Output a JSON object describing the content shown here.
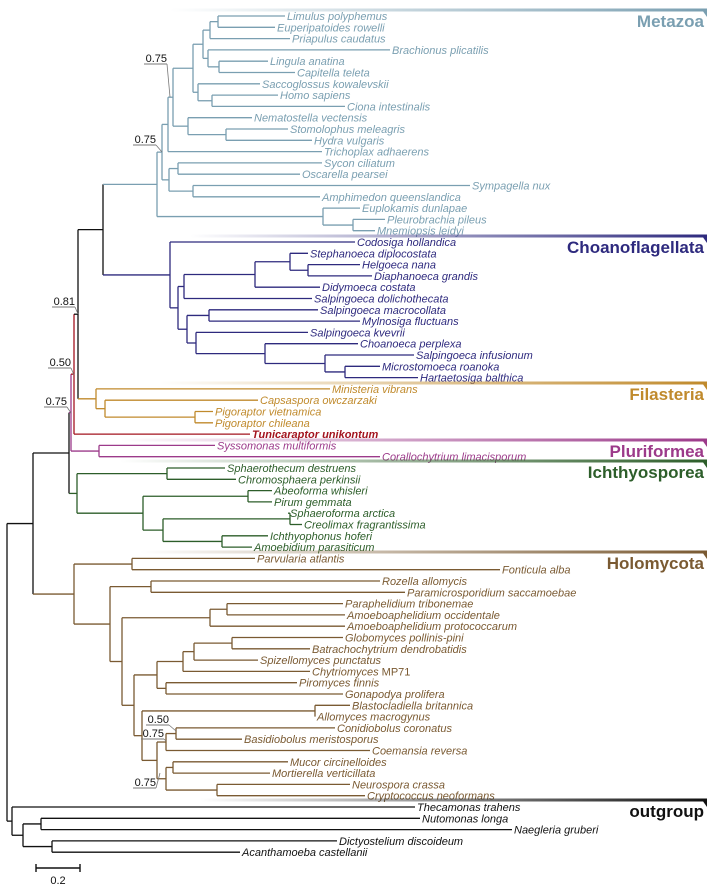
{
  "clades": [
    {
      "name": "Metazoa",
      "color": "#7a9fb1",
      "taxa": [
        {
          "name": "Limulus polyphemus"
        },
        {
          "name": "Euperipatoides rowelli"
        },
        {
          "name": "Priapulus caudatus"
        },
        {
          "name": "Brachionus plicatilis"
        },
        {
          "name": "Lingula anatina"
        },
        {
          "name": "Capitella teleta"
        },
        {
          "name": "Saccoglossus kowalevskii"
        },
        {
          "name": "Homo sapiens"
        },
        {
          "name": "Ciona intestinalis"
        },
        {
          "name": "Nematostella vectensis"
        },
        {
          "name": "Stomolophus meleagris"
        },
        {
          "name": "Hydra vulgaris"
        },
        {
          "name": "Trichoplax adhaerens"
        },
        {
          "name": "Sycon ciliatum"
        },
        {
          "name": "Oscarella pearsei"
        },
        {
          "name": "Sympagella nux"
        },
        {
          "name": "Amphimedon queenslandica"
        },
        {
          "name": "Euplokamis dunlapae"
        },
        {
          "name": "Pleurobrachia pileus"
        },
        {
          "name": "Mnemiopsis leidyi"
        }
      ]
    },
    {
      "name": "Choanoflagellata",
      "color": "#2e2a7e",
      "taxa": [
        {
          "name": "Codosiga hollandica"
        },
        {
          "name": "Stephanoeca diplocostata"
        },
        {
          "name": "Helgoeca nana"
        },
        {
          "name": "Diaphanoeca grandis"
        },
        {
          "name": "Didymoeca costata"
        },
        {
          "name": "Salpingoeca dolichothecata"
        },
        {
          "name": "Salpingoeca macrocollata"
        },
        {
          "name": "Mylnosiga fluctuans"
        },
        {
          "name": "Salpingoeca kvevrii"
        },
        {
          "name": "Choanoeca perplexa"
        },
        {
          "name": "Salpingoeca infusionum"
        },
        {
          "name": "Microstomoeca roanoka"
        },
        {
          "name": "Hartaetosiga balthica"
        }
      ]
    },
    {
      "name": "Filasteria",
      "color": "#c08a2c",
      "taxa": [
        {
          "name": "Ministeria vibrans"
        },
        {
          "name": "Capsaspora owczarzaki"
        },
        {
          "name": "Pigoraptor vietnamica"
        },
        {
          "name": "Pigoraptor chileana"
        }
      ]
    },
    {
      "name": null,
      "color": "#a3141f",
      "taxa": [
        {
          "name": "Tunicaraptor unikontum",
          "bold": true
        }
      ]
    },
    {
      "name": "Pluriformea",
      "color": "#9c3a8a",
      "taxa": [
        {
          "name": "Syssomonas multiformis"
        },
        {
          "name": "Corallochytrium limacisporum"
        }
      ]
    },
    {
      "name": "Ichthyosporea",
      "color": "#2d5e2a",
      "taxa": [
        {
          "name": "Sphaerothecum destruens"
        },
        {
          "name": "Chromosphaera perkinsii"
        },
        {
          "name": "Abeoforma whisleri"
        },
        {
          "name": "Pirum gemmata"
        },
        {
          "name": "Sphaeroforma arctica"
        },
        {
          "name": "Creolimax fragrantissima"
        },
        {
          "name": "Ichthyophonus hoferi"
        },
        {
          "name": "Amoebidium parasiticum"
        }
      ]
    },
    {
      "name": "Holomycota",
      "color": "#7a5a32",
      "taxa": [
        {
          "name": "Parvularia atlantis"
        },
        {
          "name": "Fonticula alba"
        },
        {
          "name": "Rozella allomycis"
        },
        {
          "name": "Paramicrosporidium saccamoebae"
        },
        {
          "name": "Paraphelidium tribonemae"
        },
        {
          "name": "Amoeboaphelidium occidentale"
        },
        {
          "name": "Amoeboaphelidium protococcarum"
        },
        {
          "name": "Globomyces pollinis-pini"
        },
        {
          "name": "Batrachochytrium dendrobatidis"
        },
        {
          "name": "Spizellomyces punctatus"
        },
        {
          "name": "Chytriomyces",
          "strain": "MP71"
        },
        {
          "name": "Piromyces finnis"
        },
        {
          "name": "Gonapodya prolifera"
        },
        {
          "name": "Blastocladiella britannica"
        },
        {
          "name": "Allomyces macrogynus"
        },
        {
          "name": "Conidiobolus coronatus"
        },
        {
          "name": "Basidiobolus meristosporus"
        },
        {
          "name": "Coemansia reversa"
        },
        {
          "name": "Mucor circinelloides"
        },
        {
          "name": "Mortierella verticillata"
        },
        {
          "name": "Neurospora crassa"
        },
        {
          "name": "Cryptococcus neoformans"
        }
      ]
    },
    {
      "name": "outgroup",
      "color": "#111111",
      "taxa": [
        {
          "name": "Thecamonas trahens"
        },
        {
          "name": "Nutomonas longa"
        },
        {
          "name": "Naegleria gruberi"
        },
        {
          "name": "Dictyostelium discoideum"
        },
        {
          "name": "Acanthamoeba castellanii"
        }
      ]
    }
  ],
  "support_values": [
    "0.75",
    "0.75",
    "0.81",
    "0.50",
    "0.75",
    "0.50",
    "0.75",
    "0.75"
  ],
  "scale_bar": {
    "label": "0.2",
    "value": 0.2
  },
  "spine_color": "#111111"
}
